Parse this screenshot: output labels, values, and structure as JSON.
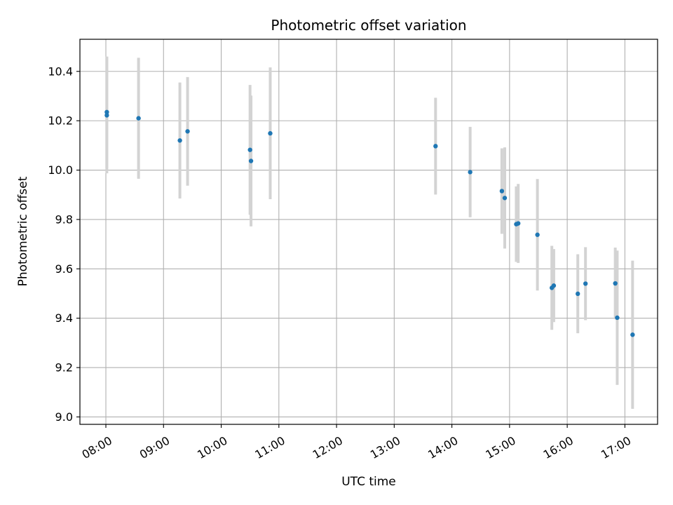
{
  "chart_data": {
    "type": "scatter",
    "title": "Photometric offset variation",
    "xlabel": "UTC time",
    "ylabel": "Photometric offset",
    "x_unit": "UTC time (HH:MM)",
    "xlim": [
      "07:33",
      "17:34"
    ],
    "ylim": [
      8.97,
      10.53
    ],
    "x_ticks": [
      "08:00",
      "09:00",
      "10:00",
      "11:00",
      "12:00",
      "13:00",
      "14:00",
      "15:00",
      "16:00",
      "17:00"
    ],
    "y_ticks": [
      "9.0",
      "9.2",
      "9.4",
      "9.6",
      "9.8",
      "10.0",
      "10.2",
      "10.4"
    ],
    "grid": true,
    "marker_color": "#1f77b4",
    "errorbar_color": "#d3d3d3",
    "points": [
      {
        "x": "08:01",
        "y": 10.235,
        "err": 0.225
      },
      {
        "x": "08:01",
        "y": 10.222,
        "err": 0.235
      },
      {
        "x": "08:34",
        "y": 10.21,
        "err": 0.245
      },
      {
        "x": "09:17",
        "y": 10.12,
        "err": 0.235
      },
      {
        "x": "09:25",
        "y": 10.157,
        "err": 0.22
      },
      {
        "x": "10:30",
        "y": 10.082,
        "err": 0.263
      },
      {
        "x": "10:31",
        "y": 10.037,
        "err": 0.265
      },
      {
        "x": "10:51",
        "y": 10.149,
        "err": 0.267
      },
      {
        "x": "13:43",
        "y": 10.097,
        "err": 0.196
      },
      {
        "x": "14:19",
        "y": 9.992,
        "err": 0.183
      },
      {
        "x": "14:52",
        "y": 9.915,
        "err": 0.173
      },
      {
        "x": "14:55",
        "y": 9.887,
        "err": 0.205
      },
      {
        "x": "15:07",
        "y": 9.781,
        "err": 0.153
      },
      {
        "x": "15:09",
        "y": 9.784,
        "err": 0.16
      },
      {
        "x": "15:29",
        "y": 9.738,
        "err": 0.226
      },
      {
        "x": "15:44",
        "y": 9.523,
        "err": 0.17
      },
      {
        "x": "15:46",
        "y": 9.532,
        "err": 0.148
      },
      {
        "x": "16:11",
        "y": 9.499,
        "err": 0.16
      },
      {
        "x": "16:19",
        "y": 9.54,
        "err": 0.148
      },
      {
        "x": "16:50",
        "y": 9.541,
        "err": 0.145
      },
      {
        "x": "16:52",
        "y": 9.402,
        "err": 0.272
      },
      {
        "x": "17:08",
        "y": 9.333,
        "err": 0.3
      }
    ]
  }
}
